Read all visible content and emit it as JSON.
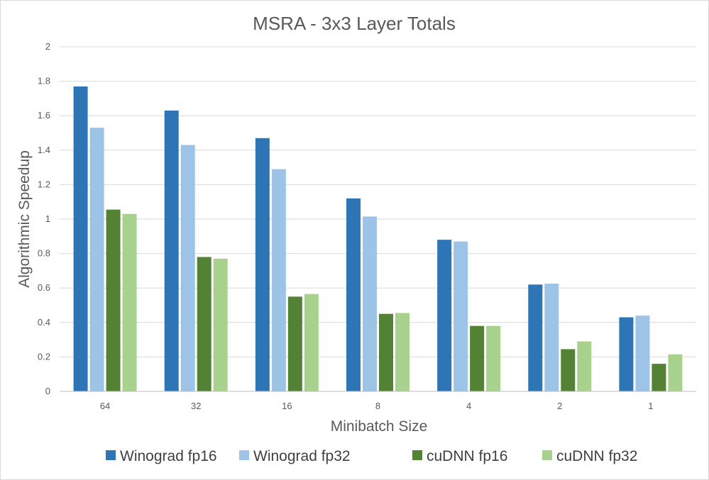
{
  "chart_data": {
    "type": "bar",
    "title": "MSRA - 3x3 Layer Totals",
    "xlabel": "Minibatch Size",
    "ylabel": "Algorithmic Speedup",
    "categories": [
      "64",
      "32",
      "16",
      "8",
      "4",
      "2",
      "1"
    ],
    "ylim": [
      0,
      2
    ],
    "yticks": [
      "0",
      "0.2",
      "0.4",
      "0.6",
      "0.8",
      "1",
      "1.2",
      "1.4",
      "1.6",
      "1.8",
      "2"
    ],
    "grid": true,
    "legend_position": "bottom",
    "series": [
      {
        "name": "Winograd fp16",
        "color": "#2e75b6",
        "values": [
          1.77,
          1.63,
          1.47,
          1.12,
          0.88,
          0.62,
          0.43
        ]
      },
      {
        "name": "Winograd fp32",
        "color": "#9dc3e6",
        "values": [
          1.53,
          1.43,
          1.29,
          1.015,
          0.87,
          0.625,
          0.44
        ]
      },
      {
        "name": "cuDNN fp16",
        "color": "#548235",
        "values": [
          1.055,
          0.78,
          0.55,
          0.45,
          0.38,
          0.245,
          0.16
        ]
      },
      {
        "name": "cuDNN fp32",
        "color": "#a9d18e",
        "values": [
          1.03,
          0.77,
          0.565,
          0.455,
          0.38,
          0.29,
          0.215
        ]
      }
    ]
  }
}
